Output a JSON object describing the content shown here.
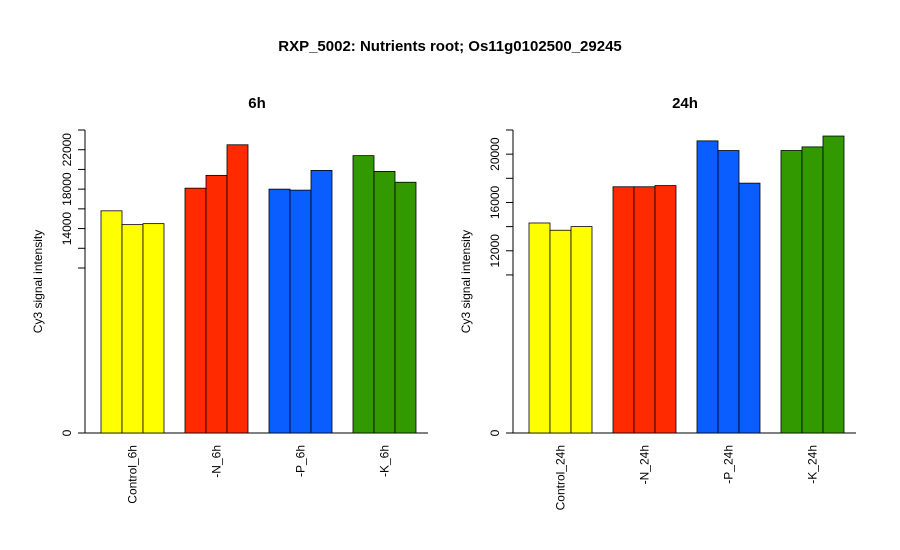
{
  "title": "RXP_5002: Nutrients root; Os11g0102500_29245",
  "chart_data": [
    {
      "type": "bar",
      "title": "6h",
      "ylabel": "Cy3 signal intensity",
      "categories": [
        "Control_6h",
        "-N_6h",
        "-P_6h",
        "-K_6h"
      ],
      "colors": [
        "#ffff00",
        "#ff2a00",
        "#0a5dff",
        "#339900"
      ],
      "values": [
        [
          15800,
          14400,
          14500
        ],
        [
          18100,
          19400,
          22500
        ],
        [
          18000,
          17900,
          19900
        ],
        [
          21400,
          19800,
          18700
        ]
      ],
      "yticks": [
        0,
        14000,
        18000,
        22000
      ],
      "ylim": [
        0,
        24000
      ],
      "ylim_lower_visible": 10000
    },
    {
      "type": "bar",
      "title": "24h",
      "ylabel": "Cy3 signal intensity",
      "categories": [
        "Control_24h",
        "-N_24h",
        "-P_24h",
        "-K_24h"
      ],
      "colors": [
        "#ffff00",
        "#ff2a00",
        "#0a5dff",
        "#339900"
      ],
      "values": [
        [
          14300,
          13700,
          14000
        ],
        [
          17300,
          17300,
          17400
        ],
        [
          21100,
          20300,
          17600
        ],
        [
          20300,
          20600,
          21500
        ]
      ],
      "yticks": [
        0,
        12000,
        16000,
        20000
      ],
      "ylim": [
        0,
        22000
      ],
      "ylim_lower_visible": 9000
    }
  ]
}
